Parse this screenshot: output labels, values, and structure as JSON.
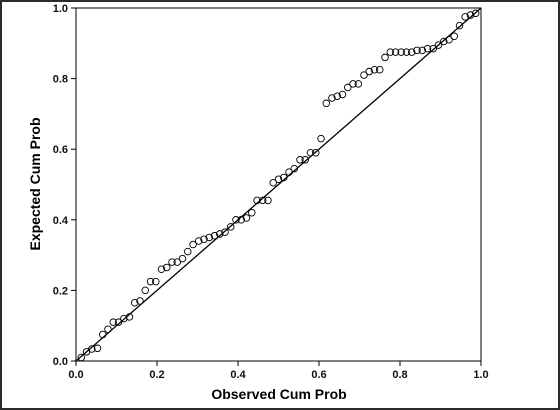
{
  "chart_data": {
    "type": "scatter",
    "title": "",
    "xlabel": "Observed Cum Prob",
    "ylabel": "Expected Cum Prob",
    "xlim": [
      0.0,
      1.0
    ],
    "ylim": [
      0.0,
      1.0
    ],
    "x_ticks": [
      "0.0",
      "0.2",
      "0.4",
      "0.6",
      "0.8",
      "1.0"
    ],
    "y_ticks": [
      "0.0",
      "0.2",
      "0.4",
      "0.6",
      "0.8",
      "1.0"
    ],
    "grid": false,
    "reference_line": [
      [
        0.0,
        0.0
      ],
      [
        1.0,
        1.0
      ]
    ],
    "series": [
      {
        "marker": "open-circle",
        "x": [
          0.013,
          0.026,
          0.039,
          0.053,
          0.066,
          0.079,
          0.092,
          0.105,
          0.118,
          0.132,
          0.145,
          0.158,
          0.171,
          0.184,
          0.197,
          0.211,
          0.224,
          0.237,
          0.25,
          0.263,
          0.276,
          0.289,
          0.303,
          0.316,
          0.329,
          0.342,
          0.355,
          0.368,
          0.382,
          0.395,
          0.408,
          0.421,
          0.434,
          0.447,
          0.461,
          0.474,
          0.487,
          0.5,
          0.513,
          0.526,
          0.539,
          0.553,
          0.566,
          0.579,
          0.592,
          0.605,
          0.618,
          0.632,
          0.645,
          0.658,
          0.671,
          0.684,
          0.697,
          0.711,
          0.724,
          0.737,
          0.75,
          0.763,
          0.776,
          0.789,
          0.803,
          0.816,
          0.829,
          0.842,
          0.855,
          0.868,
          0.882,
          0.895,
          0.908,
          0.921,
          0.934,
          0.947,
          0.961,
          0.974,
          0.987
        ],
        "y": [
          0.01,
          0.026,
          0.034,
          0.036,
          0.075,
          0.09,
          0.11,
          0.11,
          0.12,
          0.125,
          0.165,
          0.17,
          0.2,
          0.225,
          0.225,
          0.26,
          0.265,
          0.28,
          0.28,
          0.29,
          0.31,
          0.33,
          0.34,
          0.345,
          0.35,
          0.355,
          0.36,
          0.365,
          0.38,
          0.4,
          0.4,
          0.405,
          0.42,
          0.455,
          0.455,
          0.455,
          0.505,
          0.515,
          0.52,
          0.535,
          0.545,
          0.57,
          0.57,
          0.59,
          0.59,
          0.63,
          0.73,
          0.745,
          0.75,
          0.755,
          0.775,
          0.785,
          0.785,
          0.81,
          0.82,
          0.825,
          0.825,
          0.86,
          0.875,
          0.875,
          0.875,
          0.875,
          0.875,
          0.88,
          0.88,
          0.885,
          0.885,
          0.895,
          0.905,
          0.91,
          0.92,
          0.95,
          0.975,
          0.98,
          0.985
        ]
      }
    ]
  }
}
